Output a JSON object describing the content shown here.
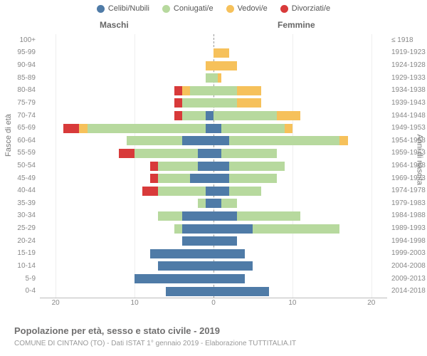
{
  "legend": {
    "items": [
      {
        "label": "Celibi/Nubili",
        "color": "#4f7ba7"
      },
      {
        "label": "Coniugati/e",
        "color": "#b7d99e"
      },
      {
        "label": "Vedovi/e",
        "color": "#f6c15b"
      },
      {
        "label": "Divorziati/e",
        "color": "#d83a3a"
      }
    ]
  },
  "headers": {
    "male": "Maschi",
    "female": "Femmine"
  },
  "axis": {
    "left_title": "Fasce di età",
    "right_title": "Anni di nascita",
    "x_ticks": [
      20,
      10,
      0,
      10,
      20
    ],
    "x_max": 22
  },
  "footer": {
    "title": "Popolazione per età, sesso e stato civile - 2019",
    "sub": "COMUNE DI CINTANO (TO) - Dati ISTAT 1° gennaio 2019 - Elaborazione TUTTITALIA.IT"
  },
  "rows": [
    {
      "age": "100+",
      "birth": "≤ 1918",
      "m": [
        0,
        0,
        0,
        0
      ],
      "f": [
        0,
        0,
        0,
        0
      ]
    },
    {
      "age": "95-99",
      "birth": "1919-1923",
      "m": [
        0,
        0,
        0,
        0
      ],
      "f": [
        0,
        0,
        2,
        0
      ]
    },
    {
      "age": "90-94",
      "birth": "1924-1928",
      "m": [
        0,
        0,
        1,
        0
      ],
      "f": [
        0,
        0,
        3,
        0
      ]
    },
    {
      "age": "85-89",
      "birth": "1929-1933",
      "m": [
        0,
        1,
        0,
        0
      ],
      "f": [
        0,
        0.5,
        0.5,
        0
      ]
    },
    {
      "age": "80-84",
      "birth": "1934-1938",
      "m": [
        0,
        3,
        1,
        1
      ],
      "f": [
        0,
        3,
        3,
        0
      ]
    },
    {
      "age": "75-79",
      "birth": "1939-1943",
      "m": [
        0,
        4,
        0,
        1
      ],
      "f": [
        0,
        3,
        3,
        0
      ]
    },
    {
      "age": "70-74",
      "birth": "1944-1948",
      "m": [
        1,
        3,
        0,
        1
      ],
      "f": [
        0,
        8,
        3,
        0
      ]
    },
    {
      "age": "65-69",
      "birth": "1949-1953",
      "m": [
        1,
        15,
        1,
        2
      ],
      "f": [
        1,
        8,
        1,
        0
      ]
    },
    {
      "age": "60-64",
      "birth": "1954-1958",
      "m": [
        4,
        7,
        0,
        0
      ],
      "f": [
        2,
        14,
        1,
        0
      ]
    },
    {
      "age": "55-59",
      "birth": "1959-1963",
      "m": [
        2,
        8,
        0,
        2
      ],
      "f": [
        1,
        7,
        0,
        0
      ]
    },
    {
      "age": "50-54",
      "birth": "1964-1968",
      "m": [
        2,
        5,
        0,
        1
      ],
      "f": [
        2,
        7,
        0,
        0
      ]
    },
    {
      "age": "45-49",
      "birth": "1969-1973",
      "m": [
        3,
        4,
        0,
        1
      ],
      "f": [
        2,
        6,
        0,
        0
      ]
    },
    {
      "age": "40-44",
      "birth": "1974-1978",
      "m": [
        1,
        6,
        0,
        2
      ],
      "f": [
        2,
        4,
        0,
        0
      ]
    },
    {
      "age": "35-39",
      "birth": "1979-1983",
      "m": [
        1,
        1,
        0,
        0
      ],
      "f": [
        1,
        2,
        0,
        0
      ]
    },
    {
      "age": "30-34",
      "birth": "1984-1988",
      "m": [
        4,
        3,
        0,
        0
      ],
      "f": [
        3,
        8,
        0,
        0
      ]
    },
    {
      "age": "25-29",
      "birth": "1989-1993",
      "m": [
        4,
        1,
        0,
        0
      ],
      "f": [
        5,
        11,
        0,
        0
      ]
    },
    {
      "age": "20-24",
      "birth": "1994-1998",
      "m": [
        4,
        0,
        0,
        0
      ],
      "f": [
        3,
        0,
        0,
        0
      ]
    },
    {
      "age": "15-19",
      "birth": "1999-2003",
      "m": [
        8,
        0,
        0,
        0
      ],
      "f": [
        4,
        0,
        0,
        0
      ]
    },
    {
      "age": "10-14",
      "birth": "2004-2008",
      "m": [
        7,
        0,
        0,
        0
      ],
      "f": [
        5,
        0,
        0,
        0
      ]
    },
    {
      "age": "5-9",
      "birth": "2009-2013",
      "m": [
        10,
        0,
        0,
        0
      ],
      "f": [
        4,
        0,
        0,
        0
      ]
    },
    {
      "age": "0-4",
      "birth": "2014-2018",
      "m": [
        6,
        0,
        0,
        0
      ],
      "f": [
        7,
        0,
        0,
        0
      ]
    }
  ]
}
